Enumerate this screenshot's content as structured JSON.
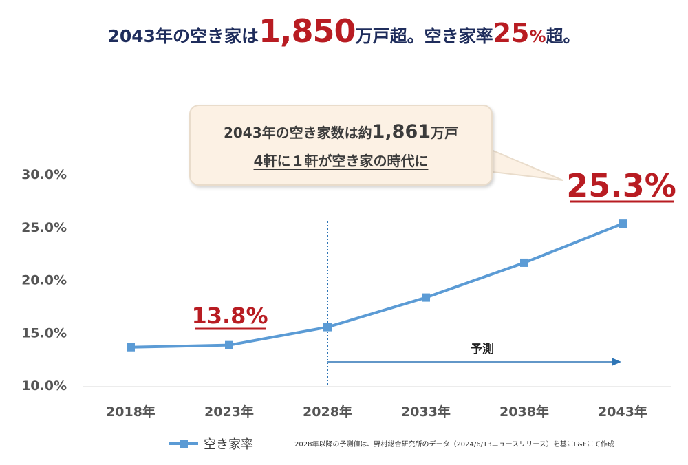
{
  "headline": {
    "part1": "2043年の空き家は",
    "num": "1,850",
    "part2": "万戸超。空き家率",
    "pct_num": "25",
    "pct_sign": "%",
    "part3": "超。"
  },
  "callout": {
    "line1_prefix": "2043年の空き家数は約",
    "line1_num": "1,861",
    "line1_suffix": "万戸",
    "line2": "4軒に１軒が空き家の時代に"
  },
  "annotations": {
    "highlight_2023": "13.8%",
    "highlight_2043": "25.3%",
    "forecast_label": "予測"
  },
  "footnote": "2028年以降の予測値は、野村総合研究所のデータ（2024/6/13ニュースリリース）を基にL&Fにて作成",
  "chart_data": {
    "type": "line",
    "title": "2043年の空き家は1,850万戸超。空き家率25%超。",
    "categories": [
      "2018年",
      "2023年",
      "2028年",
      "2033年",
      "2038年",
      "2043年"
    ],
    "series": [
      {
        "name": "空き家率",
        "values": [
          13.6,
          13.8,
          15.5,
          18.3,
          21.6,
          25.3
        ]
      }
    ],
    "ylim": [
      10,
      30
    ],
    "y_ticks": [
      "10.0%",
      "15.0%",
      "20.0%",
      "25.0%",
      "30.0%"
    ],
    "xlabel": "",
    "ylabel": "",
    "grid": false,
    "legend": "bottom",
    "forecast_start": "2028年",
    "line_color": "#5b9bd5",
    "accent_color": "#b81c22"
  }
}
